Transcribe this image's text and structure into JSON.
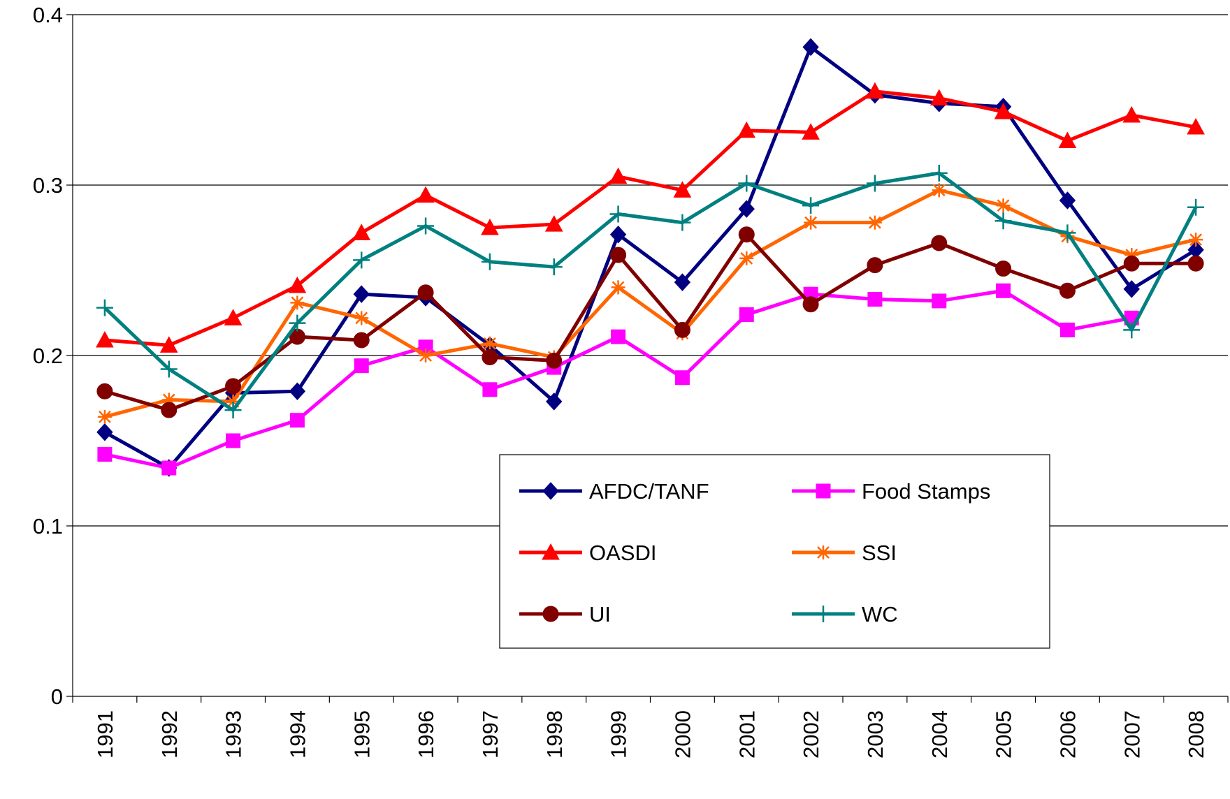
{
  "chart_data": {
    "type": "line",
    "categories": [
      "1991",
      "1992",
      "1993",
      "1994",
      "1995",
      "1996",
      "1997",
      "1998",
      "1999",
      "2000",
      "2001",
      "2002",
      "2003",
      "2004",
      "2005",
      "2006",
      "2007",
      "2008"
    ],
    "ylim": [
      0,
      0.4
    ],
    "yticks": [
      0,
      0.1,
      0.2,
      0.3,
      0.4
    ],
    "grid": true,
    "series": [
      {
        "name": "AFDC/TANF",
        "color": "#000080",
        "marker": "diamond",
        "values": [
          0.155,
          0.134,
          0.178,
          0.179,
          0.236,
          0.234,
          0.206,
          0.173,
          0.271,
          0.243,
          0.286,
          0.381,
          0.353,
          0.348,
          0.346,
          0.291,
          0.239,
          0.262
        ]
      },
      {
        "name": "Food Stamps",
        "color": "#ff00ff",
        "marker": "square",
        "values": [
          0.142,
          0.134,
          0.15,
          0.162,
          0.194,
          0.205,
          0.18,
          0.193,
          0.211,
          0.187,
          0.224,
          0.236,
          0.233,
          0.232,
          0.238,
          0.215,
          0.222,
          null
        ]
      },
      {
        "name": "OASDI",
        "color": "#ff0000",
        "marker": "triangle",
        "values": [
          0.209,
          0.206,
          0.222,
          0.241,
          0.272,
          0.294,
          0.275,
          0.277,
          0.305,
          0.297,
          0.332,
          0.331,
          0.355,
          0.351,
          0.343,
          0.326,
          0.341,
          0.334
        ]
      },
      {
        "name": "SSI",
        "color": "#ff6600",
        "marker": "star",
        "values": [
          0.164,
          0.174,
          0.173,
          0.231,
          0.222,
          0.2,
          0.207,
          0.199,
          0.24,
          0.213,
          0.257,
          0.278,
          0.278,
          0.297,
          0.288,
          0.27,
          0.259,
          0.268
        ]
      },
      {
        "name": "UI",
        "color": "#800000",
        "marker": "circle",
        "values": [
          0.179,
          0.168,
          0.182,
          0.211,
          0.209,
          0.237,
          0.199,
          0.197,
          0.259,
          0.215,
          0.271,
          0.23,
          0.253,
          0.266,
          0.251,
          0.238,
          0.254,
          0.254
        ]
      },
      {
        "name": "WC",
        "color": "#008080",
        "marker": "plus",
        "values": [
          0.228,
          0.192,
          0.168,
          0.219,
          0.256,
          0.276,
          0.255,
          0.252,
          0.283,
          0.278,
          0.301,
          0.288,
          0.301,
          0.307,
          0.279,
          0.272,
          0.215,
          0.287
        ]
      }
    ]
  }
}
